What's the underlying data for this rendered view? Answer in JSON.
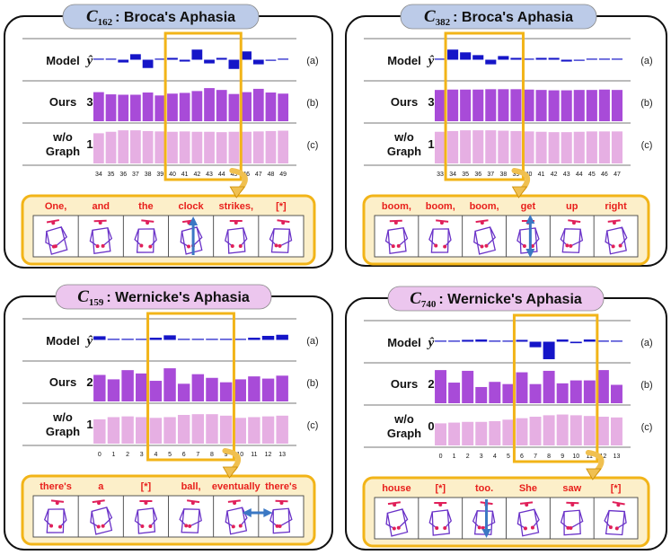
{
  "colors": {
    "model_bar": "#1515c8",
    "ours_bar": "#a84bd8",
    "wog_bar": "#e6afe3",
    "highlight": "#f2b418",
    "arrow_fill": "#f0c050",
    "arrow_stroke": "#c98a00",
    "word_text": "#e8201c",
    "title_blue": "#bccbe8",
    "title_pink": "#ecc6ee",
    "strip_bg": "#fcefc9",
    "updown_arrow": "#3b78c4",
    "pose_body": "#6a32c8",
    "pose_joint": "#e0205a"
  },
  "chart_data": [
    {
      "type": "bar",
      "title": {
        "symbol": "C",
        "subscript": "162",
        "text": ": Broca's Aphasia"
      },
      "row_labels": {
        "model": "Model",
        "model_symbol": "ŷ",
        "ours": "Ours",
        "wog_line1": "w/o",
        "wog_line2": "Graph"
      },
      "row_values": {
        "ours": "3",
        "wog": "1"
      },
      "panel_tags": [
        "(a)",
        "(b)",
        "(c)"
      ],
      "categories": [
        "34",
        "35",
        "36",
        "37",
        "38",
        "39",
        "40",
        "41",
        "42",
        "43",
        "44",
        "45",
        "46",
        "47",
        "48",
        "49"
      ],
      "highlighted": [
        "40",
        "41",
        "42",
        "43",
        "44",
        "45"
      ],
      "series": [
        {
          "name": "Model",
          "values": [
            0,
            0.05,
            -0.15,
            0.3,
            -0.45,
            0.05,
            0.1,
            -0.1,
            0.55,
            -0.2,
            0.1,
            -0.5,
            0.45,
            -0.25,
            -0.05,
            0
          ]
        },
        {
          "name": "Ours",
          "values": [
            0.79,
            0.73,
            0.72,
            0.72,
            0.78,
            0.7,
            0.75,
            0.77,
            0.82,
            0.9,
            0.85,
            0.74,
            0.79,
            0.88,
            0.78,
            0.75
          ]
        },
        {
          "name": "w/o Graph",
          "values": [
            0.82,
            0.86,
            0.9,
            0.9,
            0.88,
            0.87,
            0.86,
            0.87,
            0.86,
            0.86,
            0.85,
            0.86,
            0.86,
            0.87,
            0.88,
            0.89
          ]
        }
      ],
      "words": [
        "One,",
        "and",
        "the",
        "clock",
        "strikes,",
        "[*]"
      ],
      "arrow_frame": 3,
      "arrow_direction": "vertical",
      "title_color": "title_blue"
    },
    {
      "type": "bar",
      "title": {
        "symbol": "C",
        "subscript": "382",
        "text": ": Broca's Aphasia"
      },
      "row_labels": {
        "model": "Model",
        "model_symbol": "ŷ",
        "ours": "Ours",
        "wog_line1": "w/o",
        "wog_line2": "Graph"
      },
      "row_values": {
        "ours": "3",
        "wog": "1"
      },
      "panel_tags": [
        "(a)",
        "(b)",
        "(c)"
      ],
      "categories": [
        "33",
        "34",
        "35",
        "36",
        "37",
        "38",
        "39",
        "40",
        "41",
        "42",
        "43",
        "44",
        "45",
        "46",
        "47"
      ],
      "highlighted": [
        "34",
        "35",
        "36",
        "37",
        "38",
        "39"
      ],
      "series": [
        {
          "name": "Model",
          "values": [
            0,
            0.55,
            0.4,
            0.25,
            -0.25,
            0.2,
            0.1,
            0.05,
            0.1,
            0.1,
            -0.1,
            -0.05,
            0.04,
            0.03,
            0.02
          ]
        },
        {
          "name": "Ours",
          "values": [
            0.85,
            0.86,
            0.86,
            0.86,
            0.87,
            0.87,
            0.87,
            0.86,
            0.85,
            0.84,
            0.84,
            0.85,
            0.85,
            0.86,
            0.85
          ]
        },
        {
          "name": "w/o Graph",
          "values": [
            0.86,
            0.88,
            0.9,
            0.9,
            0.9,
            0.89,
            0.88,
            0.87,
            0.86,
            0.85,
            0.85,
            0.86,
            0.87,
            0.87,
            0.87
          ]
        }
      ],
      "words": [
        "boom,",
        "boom,",
        "boom,",
        "get",
        "up",
        "right"
      ],
      "arrow_frame": 3,
      "arrow_direction": "vertical-double",
      "title_color": "title_blue"
    },
    {
      "type": "bar",
      "title": {
        "symbol": "C",
        "subscript": "159",
        "text": ": Wernicke's Aphasia"
      },
      "row_labels": {
        "model": "Model",
        "model_symbol": "ŷ",
        "ours": "Ours",
        "wog_line1": "w/o",
        "wog_line2": "Graph"
      },
      "row_values": {
        "ours": "2",
        "wog": "1"
      },
      "panel_tags": [
        "(a)",
        "(b)",
        "(c)"
      ],
      "categories": [
        "0",
        "1",
        "2",
        "3",
        "4",
        "5",
        "6",
        "7",
        "8",
        "9",
        "10",
        "11",
        "12",
        "13"
      ],
      "highlighted": [
        "4",
        "5",
        "6",
        "7",
        "8",
        "9"
      ],
      "series": [
        {
          "name": "Model",
          "values": [
            0.2,
            0.05,
            0,
            0.02,
            0.12,
            0.25,
            0.02,
            0.02,
            0.02,
            0.02,
            0,
            0.12,
            0.22,
            0.28
          ]
        },
        {
          "name": "Ours",
          "values": [
            0.72,
            0.6,
            0.85,
            0.76,
            0.56,
            0.9,
            0.48,
            0.74,
            0.64,
            0.52,
            0.6,
            0.68,
            0.62,
            0.7
          ]
        },
        {
          "name": "w/o Graph",
          "values": [
            0.66,
            0.72,
            0.74,
            0.72,
            0.7,
            0.72,
            0.78,
            0.8,
            0.8,
            0.76,
            0.7,
            0.72,
            0.74,
            0.76
          ]
        }
      ],
      "words": [
        "there's",
        "a",
        "[*]",
        "ball,",
        "eventually",
        "there's"
      ],
      "arrow_frame": 4,
      "arrow_direction": "horizontal-double",
      "title_color": "title_pink"
    },
    {
      "type": "bar",
      "title": {
        "symbol": "C",
        "subscript": "740",
        "text": ": Wernicke's Aphasia"
      },
      "row_labels": {
        "model": "Model",
        "model_symbol": "ŷ",
        "ours": "Ours",
        "wog_line1": "w/o",
        "wog_line2": "Graph"
      },
      "row_values": {
        "ours": "2",
        "wog": "0"
      },
      "panel_tags": [
        "(a)",
        "(b)",
        "(c)"
      ],
      "categories": [
        "0",
        "1",
        "2",
        "3",
        "4",
        "5",
        "6",
        "7",
        "8",
        "9",
        "10",
        "11",
        "12",
        "13"
      ],
      "highlighted": [
        "6",
        "7",
        "8",
        "9",
        "10",
        "11"
      ],
      "series": [
        {
          "name": "Model",
          "values": [
            0,
            0.05,
            0.1,
            0.12,
            0.06,
            0.05,
            0.1,
            -0.3,
            -0.95,
            0.12,
            -0.08,
            0.12,
            0.06,
            0.03
          ]
        },
        {
          "name": "Ours",
          "values": [
            0.9,
            0.56,
            0.88,
            0.44,
            0.58,
            0.52,
            0.84,
            0.52,
            0.88,
            0.54,
            0.62,
            0.62,
            0.9,
            0.5
          ]
        },
        {
          "name": "w/o Graph",
          "values": [
            0.6,
            0.62,
            0.64,
            0.64,
            0.66,
            0.7,
            0.74,
            0.78,
            0.82,
            0.84,
            0.82,
            0.8,
            0.78,
            0.76
          ]
        }
      ],
      "words": [
        "house",
        "[*]",
        "too.",
        "She",
        "saw",
        "[*]"
      ],
      "arrow_frame": 2,
      "arrow_direction": "vertical-down",
      "title_color": "title_pink"
    }
  ]
}
